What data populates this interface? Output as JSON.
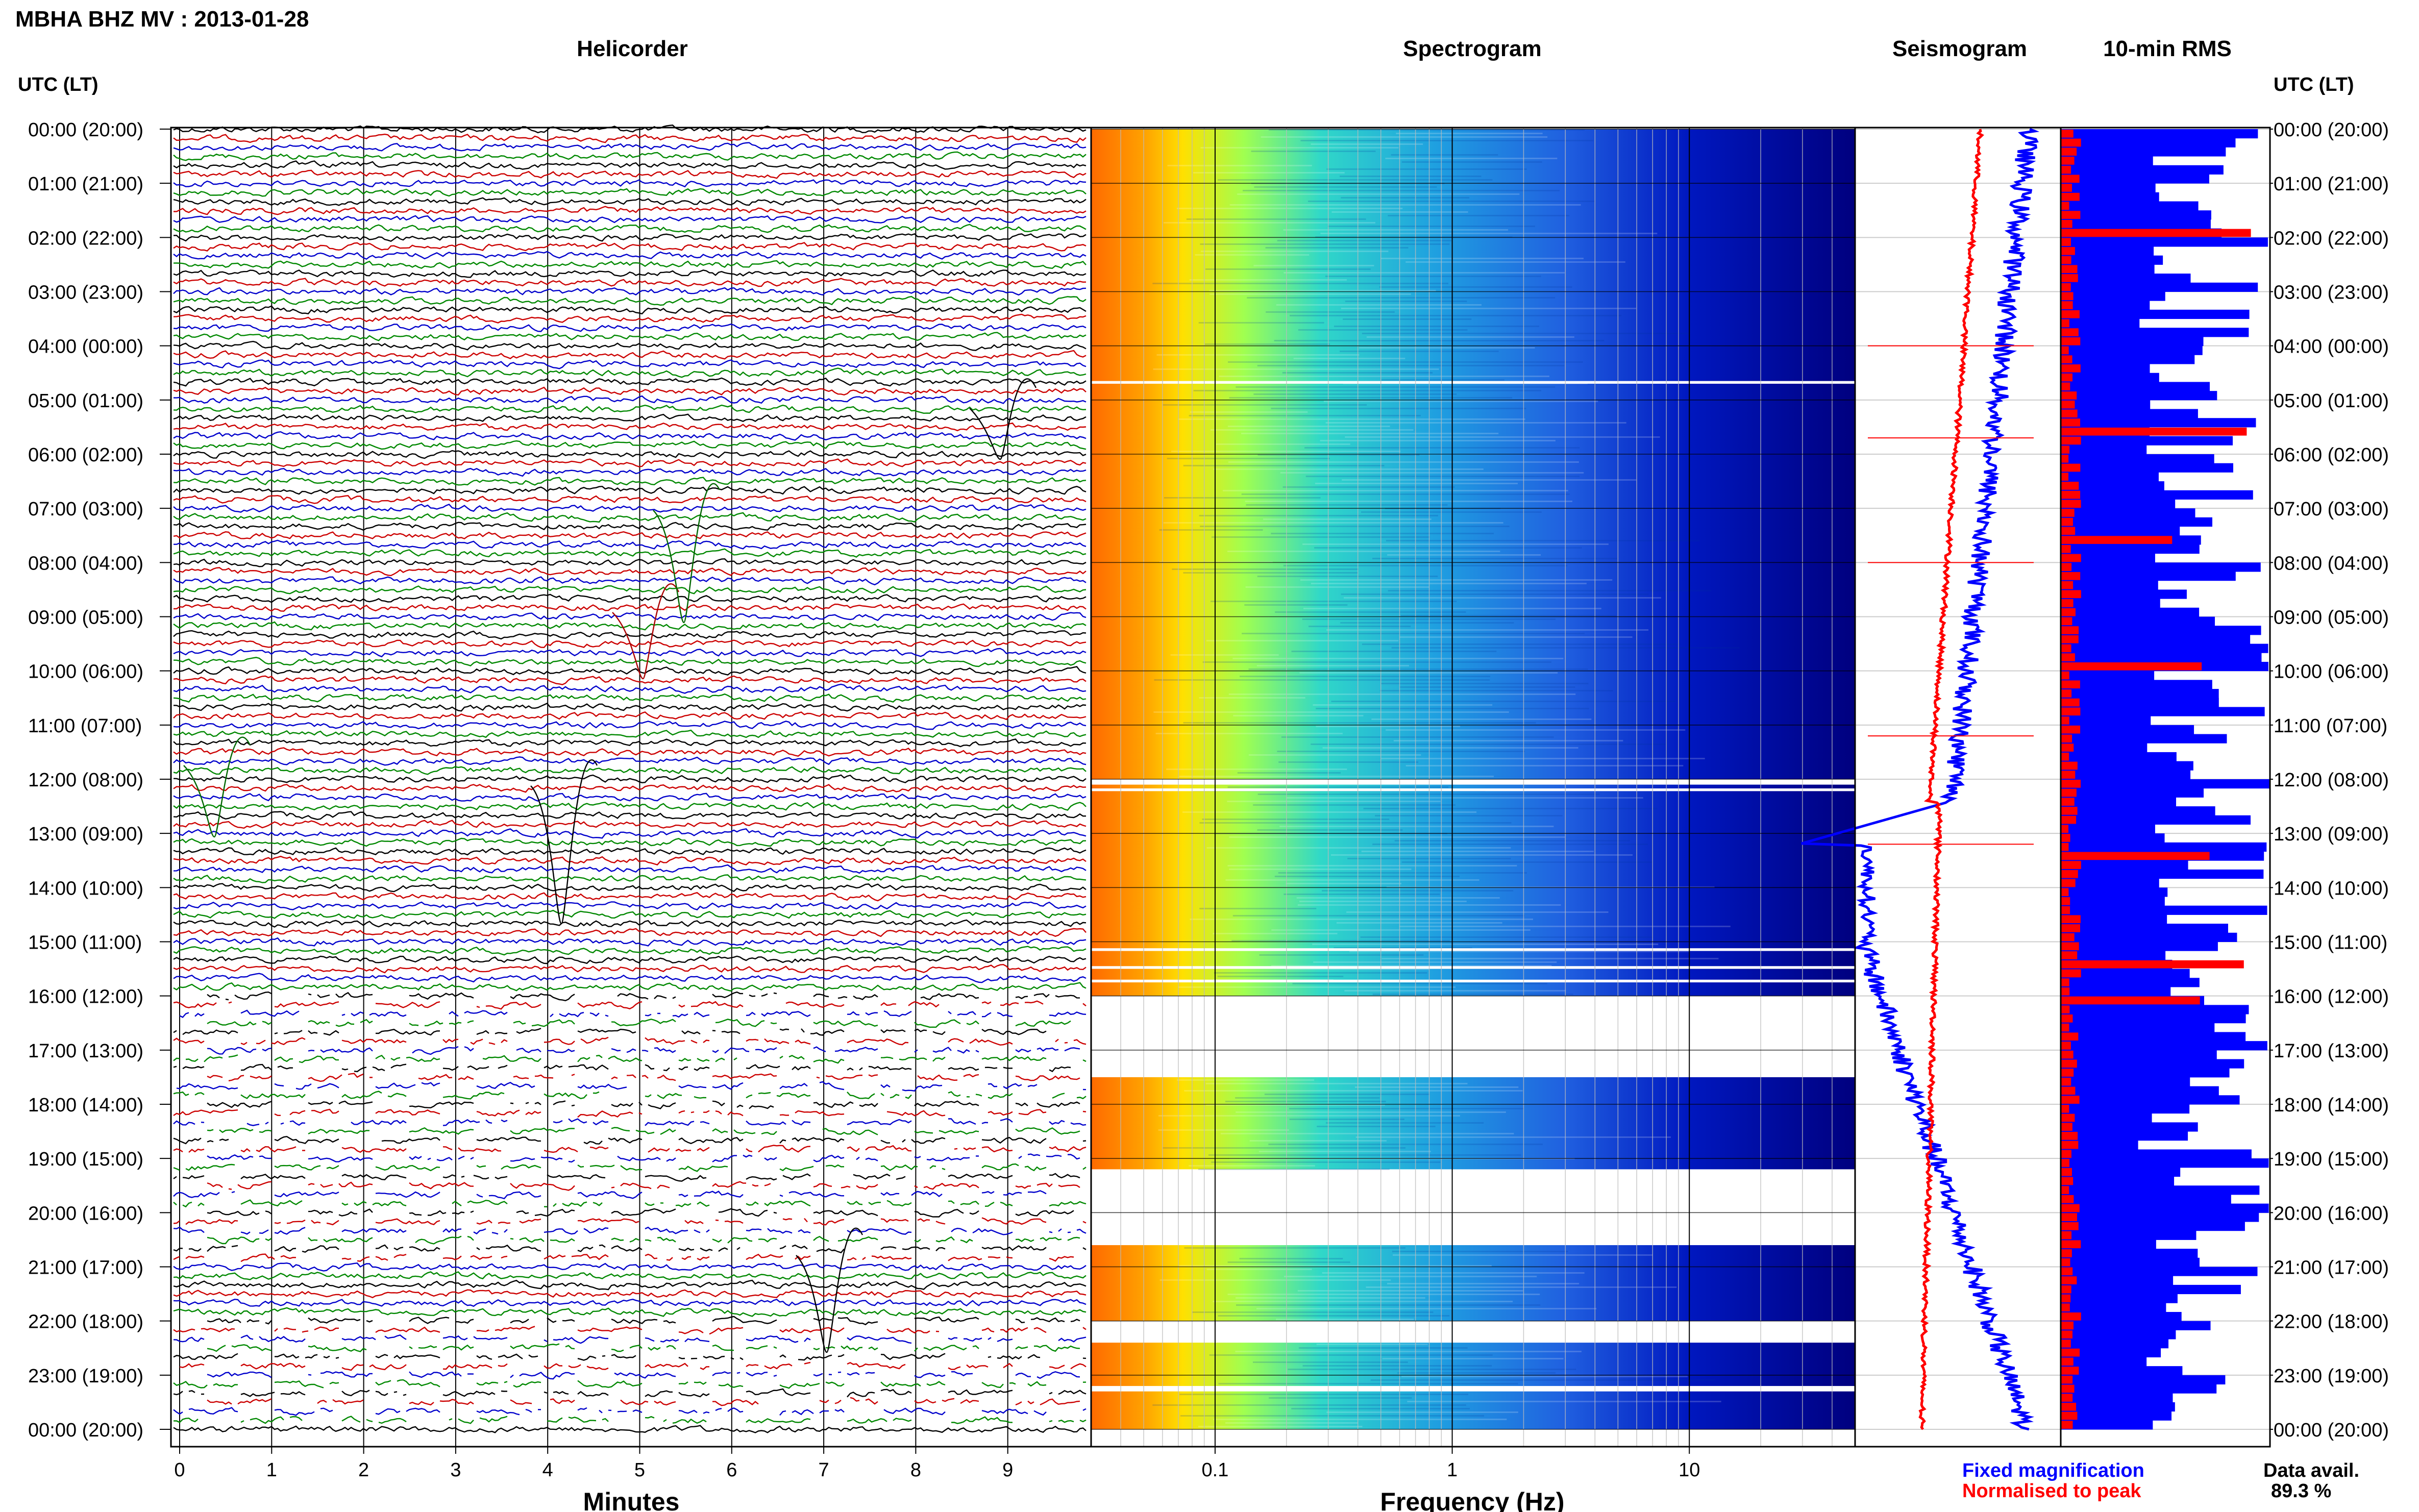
{
  "header": {
    "title": "MBHA BHZ MV : 2013-01-28",
    "panel_titles": [
      "Helicorder",
      "Spectrogram",
      "Seismogram",
      "10-min RMS"
    ],
    "left_axis_title": "UTC (LT)",
    "right_axis_title": "UTC (LT)"
  },
  "footer": {
    "helicorder_xlabel": "Minutes",
    "spectrogram_xlabel": "Frequency (Hz)",
    "legend_fixed": "Fixed magnification",
    "legend_normalised": "Normalised to peak",
    "data_avail_label": "Data avail.",
    "data_avail_value": "89.3 %"
  },
  "colors": {
    "trace_cycle": [
      "#000000",
      "#cc0000",
      "#0000cc",
      "#008800"
    ],
    "fixed_magnification": "#0000ff",
    "normalised_to_peak": "#ff0000",
    "spectrogram_low_freq": "#ff9900",
    "spectrogram_high_freq": "#00007f"
  },
  "chart_data": [
    {
      "type": "line",
      "title": "Helicorder",
      "xlabel": "Minutes",
      "x_ticks": [
        "0",
        "1",
        "2",
        "3",
        "4",
        "5",
        "6",
        "7",
        "8",
        "9"
      ],
      "xlim": [
        0,
        10
      ],
      "row_labels": [
        "00:00 (20:00)",
        "01:00 (21:00)",
        "02:00 (22:00)",
        "03:00 (23:00)",
        "04:00 (00:00)",
        "05:00 (01:00)",
        "06:00 (02:00)",
        "07:00 (03:00)",
        "08:00 (04:00)",
        "09:00 (05:00)",
        "10:00 (06:00)",
        "11:00 (07:00)",
        "12:00 (08:00)",
        "13:00 (09:00)",
        "14:00 (10:00)",
        "15:00 (11:00)",
        "16:00 (12:00)",
        "17:00 (13:00)",
        "18:00 (14:00)",
        "19:00 (15:00)",
        "20:00 (16:00)",
        "21:00 (17:00)",
        "22:00 (18:00)",
        "23:00 (19:00)",
        "00:00 (20:00)"
      ],
      "traces_per_hour": 6,
      "gappy_hours": [
        16,
        17,
        18,
        19,
        20,
        22,
        23
      ]
    },
    {
      "type": "heatmap",
      "title": "Spectrogram",
      "xlabel": "Frequency (Hz)",
      "x_scale": "log",
      "xlim": [
        0.03,
        50
      ],
      "x_ticks": [
        "0.1",
        "1",
        "10"
      ],
      "rows_with_data_hours": [
        [
          0,
          16
        ],
        [
          17.5,
          19.2
        ],
        [
          20.6,
          22
        ],
        [
          22.4,
          23.2
        ],
        [
          23.3,
          24
        ]
      ]
    },
    {
      "type": "line",
      "title": "Seismogram",
      "series": [
        {
          "name": "Fixed magnification",
          "color": "#0000ff"
        },
        {
          "name": "Normalised to peak",
          "color": "#ff0000"
        }
      ]
    },
    {
      "type": "bar",
      "title": "10-min RMS",
      "orientation": "horizontal",
      "bars_per_hour": 6,
      "series": [
        {
          "name": "Fixed magnification",
          "color": "#0000ff"
        },
        {
          "name": "Normalised to peak",
          "color": "#ff0000"
        }
      ]
    }
  ]
}
